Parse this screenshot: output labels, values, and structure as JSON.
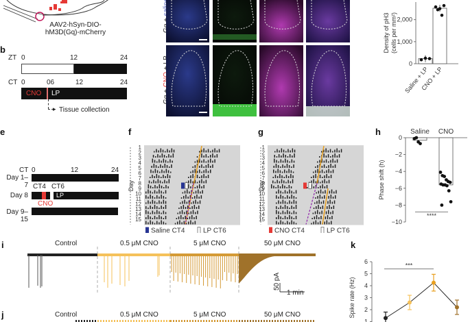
{
  "panel_a": {
    "virus_line1": "AAV2-hSyn-DIO-",
    "virus_line2": "hM3D(Gq)-mCherry"
  },
  "panel_b": {
    "label": "b",
    "zt_label": "ZT",
    "zt_ticks": [
      "0",
      "12",
      "24"
    ],
    "ct_label": "CT",
    "ct_ticks": [
      "0",
      "06",
      "12",
      "24"
    ],
    "cno_label": "CNO",
    "lp_label": "LP",
    "tissue_label": "Tissue collection"
  },
  "panel_images": {
    "row1_label_prefix": "Gq + ",
    "row1_label_treat": "saline",
    "row2_label_prefix": "Gq + ",
    "row2_label_treat": "CNO",
    "row2_label_suffix": " + LP",
    "channels": [
      "blue",
      "green",
      "magenta",
      "merge"
    ]
  },
  "panel_c": {
    "chart_data": {
      "type": "bar",
      "categories": [
        "Saline + LP",
        "CNO + LP"
      ],
      "values": [
        230,
        2520
      ],
      "points": [
        [
          180,
          250,
          230
        ],
        [
          2580,
          2450,
          2500,
          2200,
          2640
        ]
      ],
      "ylabel_line1": "Density of pH3",
      "ylabel_line2": "(cells per mm²)",
      "yticks": [
        "0",
        "1,000",
        "2,000"
      ],
      "ylim": [
        0,
        2800
      ]
    }
  },
  "panel_e": {
    "label": "e",
    "ct_label": "CT",
    "ct_ticks": [
      "0",
      "12",
      "24"
    ],
    "rows": [
      "Day 1–7",
      "Day 8",
      "Day 9–15"
    ],
    "ct4": "CT4",
    "ct6": "CT6",
    "lp": "LP",
    "cno": "CNO"
  },
  "panel_f": {
    "label": "f",
    "day_axis": "Day",
    "days": [
      "1",
      "2",
      "3",
      "4",
      "5",
      "6",
      "7",
      "8",
      "9",
      "10",
      "11",
      "12",
      "13",
      "14",
      "15"
    ],
    "legend1": "Saline CT4",
    "legend2": "LP CT6"
  },
  "panel_g": {
    "label": "g",
    "day_axis": "Day",
    "days": [
      "1",
      "2",
      "3",
      "4",
      "5",
      "6",
      "7",
      "8",
      "9",
      "10",
      "11",
      "12",
      "13",
      "14",
      "15"
    ],
    "legend1": "CNO CT4",
    "legend2": "LP CT6"
  },
  "panel_h": {
    "label": "h",
    "chart_data": {
      "type": "scatter",
      "categories": [
        "Saline",
        "CNO"
      ],
      "means": [
        -0.3,
        -5.6
      ],
      "points": [
        [
          -0.1,
          0.0,
          -0.5,
          -0.7
        ],
        [
          -4.1,
          -4.5,
          -4.6,
          -5.0,
          -5.2,
          -5.3,
          -5.5,
          -5.6,
          -5.6,
          -5.7,
          -6.3,
          -7.6,
          -8.0
        ]
      ],
      "ylabel": "Phase shift (h)",
      "yticks": [
        "0",
        "−2",
        "−4",
        "−6",
        "−8",
        "−10"
      ],
      "ylim": [
        -10,
        0
      ],
      "significance": "****"
    }
  },
  "panel_i": {
    "label": "i",
    "conditions": [
      "Control",
      "0.5 μM CNO",
      "5 μM CNO",
      "50 μM CNO"
    ],
    "scale_y": "50 pA",
    "scale_x": "1 min"
  },
  "panel_j": {
    "label": "j",
    "conditions": [
      "Control",
      "0.5 μM CNO",
      "5 μM CNO",
      "50 μM CNO"
    ]
  },
  "panel_k": {
    "label": "k",
    "chart_data": {
      "type": "line",
      "categories": [
        "Control",
        "0.5 μM CNO",
        "5 μM CNO",
        "50 μM CNO"
      ],
      "values": [
        1.3,
        2.6,
        4.25,
        2.2
      ],
      "errors": [
        0.5,
        0.6,
        0.7,
        0.6
      ],
      "colors": [
        "#222222",
        "#f5c15a",
        "#e8a020",
        "#a0722a"
      ],
      "ylabel": "Spike rate (Hz)",
      "yticks": [
        "1",
        "2",
        "3",
        "4",
        "5",
        "6"
      ],
      "ylim": [
        0,
        6
      ],
      "significance": "***"
    }
  }
}
